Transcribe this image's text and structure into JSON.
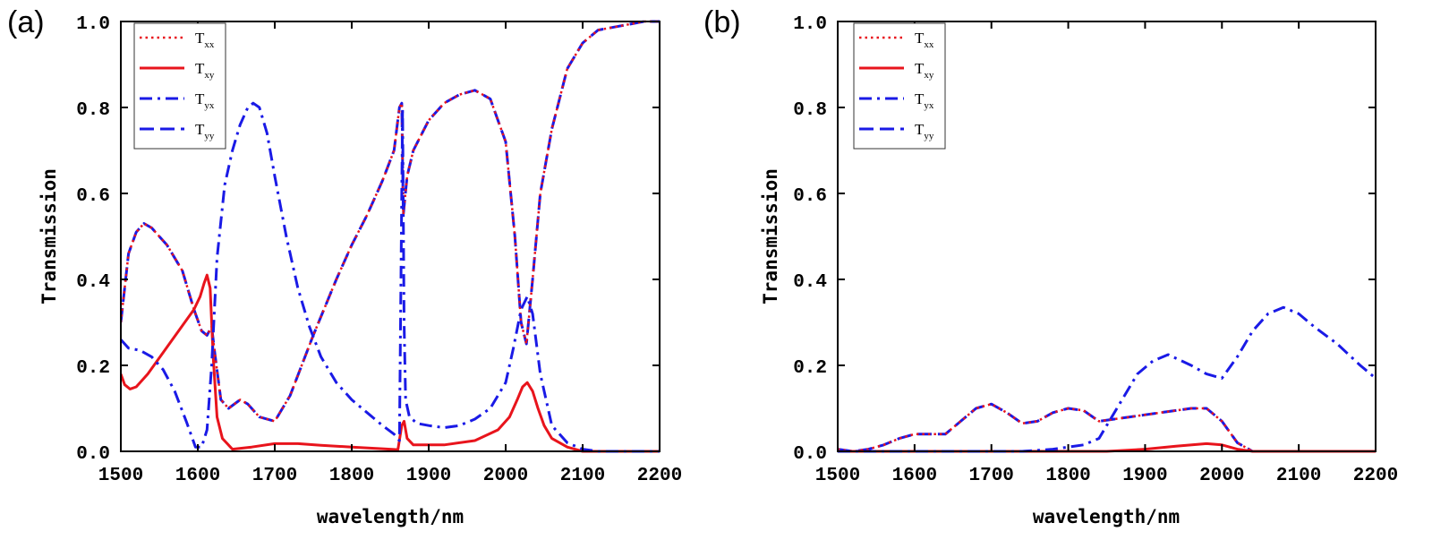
{
  "colors": {
    "red": "#e8141c",
    "blue": "#1a1ae6",
    "axis": "#000000"
  },
  "chart_data": [
    {
      "type": "line",
      "panel_label": "(a)",
      "xlabel": "wavelength/nm",
      "ylabel": "Transmission",
      "xlim": [
        1500,
        2200
      ],
      "ylim": [
        0.0,
        1.0
      ],
      "x_ticks": [
        "1500",
        "1600",
        "1700",
        "1800",
        "1900",
        "2000",
        "2100",
        "2200"
      ],
      "y_ticks": [
        "0.0",
        "0.2",
        "0.4",
        "0.6",
        "0.8",
        "1.0"
      ],
      "legend": [
        {
          "main": "T",
          "sub": "xx",
          "color": "red",
          "dash": "dot"
        },
        {
          "main": "T",
          "sub": "xy",
          "color": "red",
          "dash": "solid"
        },
        {
          "main": "T",
          "sub": "yx",
          "color": "blue",
          "dash": "dashdot"
        },
        {
          "main": "T",
          "sub": "yy",
          "color": "blue",
          "dash": "dash"
        }
      ],
      "series": [
        {
          "name": "Tyy",
          "color": "blue",
          "dash": "dash",
          "x": [
            1500,
            1510,
            1520,
            1530,
            1540,
            1560,
            1580,
            1595,
            1605,
            1612,
            1618,
            1622,
            1630,
            1640,
            1655,
            1665,
            1680,
            1700,
            1720,
            1750,
            1780,
            1800,
            1820,
            1840,
            1855,
            1862,
            1865,
            1867,
            1872,
            1880,
            1900,
            1920,
            1940,
            1960,
            1980,
            2000,
            2012,
            2020,
            2027,
            2035,
            2045,
            2060,
            2080,
            2100,
            2120,
            2150,
            2180,
            2200
          ],
          "y": [
            0.3,
            0.46,
            0.51,
            0.53,
            0.52,
            0.48,
            0.42,
            0.33,
            0.28,
            0.27,
            0.29,
            0.23,
            0.12,
            0.1,
            0.12,
            0.11,
            0.08,
            0.07,
            0.13,
            0.27,
            0.4,
            0.48,
            0.55,
            0.63,
            0.7,
            0.8,
            0.81,
            0.55,
            0.64,
            0.7,
            0.77,
            0.81,
            0.83,
            0.84,
            0.82,
            0.72,
            0.5,
            0.3,
            0.25,
            0.4,
            0.6,
            0.75,
            0.89,
            0.95,
            0.98,
            0.99,
            1.0,
            1.0
          ]
        },
        {
          "name": "Txx",
          "color": "red",
          "dash": "dot",
          "x": [
            1500,
            1510,
            1520,
            1530,
            1540,
            1560,
            1580,
            1595,
            1605,
            1612,
            1618,
            1622,
            1630,
            1640,
            1655,
            1665,
            1680,
            1700,
            1720,
            1750,
            1780,
            1800,
            1820,
            1840,
            1855,
            1862,
            1865,
            1867,
            1872,
            1880,
            1900,
            1920,
            1940,
            1960,
            1980,
            2000,
            2012,
            2020,
            2027,
            2035,
            2045,
            2060,
            2080,
            2100,
            2120,
            2150,
            2180,
            2200
          ],
          "y": [
            0.3,
            0.46,
            0.51,
            0.53,
            0.52,
            0.48,
            0.42,
            0.33,
            0.28,
            0.27,
            0.29,
            0.23,
            0.12,
            0.1,
            0.12,
            0.11,
            0.08,
            0.07,
            0.13,
            0.27,
            0.4,
            0.48,
            0.55,
            0.63,
            0.7,
            0.8,
            0.81,
            0.55,
            0.64,
            0.7,
            0.77,
            0.81,
            0.83,
            0.84,
            0.82,
            0.72,
            0.5,
            0.3,
            0.25,
            0.4,
            0.6,
            0.75,
            0.89,
            0.95,
            0.98,
            0.99,
            1.0,
            1.0
          ]
        },
        {
          "name": "Txy",
          "color": "red",
          "dash": "solid",
          "x": [
            1500,
            1505,
            1512,
            1520,
            1535,
            1555,
            1575,
            1595,
            1603,
            1608,
            1612,
            1616,
            1620,
            1625,
            1632,
            1645,
            1670,
            1700,
            1730,
            1760,
            1800,
            1840,
            1860,
            1865,
            1868,
            1872,
            1880,
            1920,
            1960,
            1990,
            2005,
            2015,
            2022,
            2028,
            2035,
            2042,
            2050,
            2060,
            2080,
            2100,
            2150,
            2200
          ],
          "y": [
            0.18,
            0.155,
            0.145,
            0.15,
            0.18,
            0.23,
            0.28,
            0.33,
            0.36,
            0.39,
            0.41,
            0.38,
            0.22,
            0.08,
            0.03,
            0.005,
            0.01,
            0.018,
            0.018,
            0.014,
            0.01,
            0.006,
            0.004,
            0.06,
            0.07,
            0.03,
            0.015,
            0.015,
            0.025,
            0.05,
            0.08,
            0.12,
            0.15,
            0.16,
            0.14,
            0.1,
            0.06,
            0.03,
            0.01,
            0.0,
            0.0,
            0.0
          ]
        },
        {
          "name": "Tyx",
          "color": "blue",
          "dash": "dashdot",
          "x": [
            1500,
            1510,
            1525,
            1540,
            1555,
            1570,
            1585,
            1597,
            1605,
            1612,
            1618,
            1625,
            1635,
            1645,
            1655,
            1665,
            1672,
            1680,
            1690,
            1700,
            1715,
            1730,
            1745,
            1760,
            1780,
            1800,
            1820,
            1840,
            1855,
            1862,
            1864,
            1866,
            1868,
            1870,
            1875,
            1885,
            1900,
            1920,
            1940,
            1960,
            1980,
            2000,
            2010,
            2020,
            2028,
            2035,
            2045,
            2060,
            2080,
            2100,
            2120,
            2150,
            2180,
            2200
          ],
          "y": [
            0.26,
            0.24,
            0.235,
            0.22,
            0.19,
            0.14,
            0.07,
            0.01,
            0.01,
            0.05,
            0.2,
            0.45,
            0.62,
            0.7,
            0.76,
            0.8,
            0.81,
            0.8,
            0.74,
            0.64,
            0.5,
            0.38,
            0.29,
            0.22,
            0.16,
            0.12,
            0.09,
            0.06,
            0.04,
            0.025,
            0.4,
            0.8,
            0.3,
            0.12,
            0.08,
            0.065,
            0.06,
            0.055,
            0.06,
            0.075,
            0.1,
            0.16,
            0.24,
            0.33,
            0.36,
            0.32,
            0.18,
            0.06,
            0.02,
            0.005,
            0.0,
            0.0,
            0.0,
            0.0
          ]
        }
      ]
    },
    {
      "type": "line",
      "panel_label": "(b)",
      "xlabel": "wavelength/nm",
      "ylabel": "Transmission",
      "xlim": [
        1500,
        2200
      ],
      "ylim": [
        0.0,
        1.0
      ],
      "x_ticks": [
        "1500",
        "1600",
        "1700",
        "1800",
        "1900",
        "2000",
        "2100",
        "2200"
      ],
      "y_ticks": [
        "0.0",
        "0.2",
        "0.4",
        "0.6",
        "0.8",
        "1.0"
      ],
      "legend": [
        {
          "main": "T",
          "sub": "xx",
          "color": "red",
          "dash": "dot"
        },
        {
          "main": "T",
          "sub": "xy",
          "color": "red",
          "dash": "solid"
        },
        {
          "main": "T",
          "sub": "yx",
          "color": "blue",
          "dash": "dashdot"
        },
        {
          "main": "T",
          "sub": "yy",
          "color": "blue",
          "dash": "dash"
        }
      ],
      "series": [
        {
          "name": "Tyy",
          "color": "blue",
          "dash": "dash",
          "x": [
            1500,
            1520,
            1540,
            1560,
            1580,
            1600,
            1620,
            1640,
            1660,
            1680,
            1700,
            1720,
            1740,
            1760,
            1780,
            1800,
            1820,
            1840,
            1860,
            1880,
            1900,
            1920,
            1940,
            1960,
            1980,
            2000,
            2020,
            2040,
            2060,
            2080,
            2100,
            2150,
            2200
          ],
          "y": [
            0.005,
            0.0,
            0.005,
            0.015,
            0.03,
            0.04,
            0.04,
            0.04,
            0.07,
            0.1,
            0.11,
            0.09,
            0.065,
            0.07,
            0.09,
            0.1,
            0.095,
            0.07,
            0.075,
            0.08,
            0.085,
            0.09,
            0.095,
            0.1,
            0.1,
            0.07,
            0.02,
            0.0,
            0.0,
            0.0,
            0.0,
            0.0,
            0.0
          ]
        },
        {
          "name": "Txx",
          "color": "red",
          "dash": "dot",
          "x": [
            1500,
            1520,
            1540,
            1560,
            1580,
            1600,
            1620,
            1640,
            1660,
            1680,
            1700,
            1720,
            1740,
            1760,
            1780,
            1800,
            1820,
            1840,
            1860,
            1880,
            1900,
            1920,
            1940,
            1960,
            1980,
            2000,
            2020,
            2040,
            2060,
            2080,
            2100,
            2150,
            2200
          ],
          "y": [
            0.005,
            0.0,
            0.005,
            0.015,
            0.03,
            0.04,
            0.04,
            0.04,
            0.07,
            0.1,
            0.11,
            0.09,
            0.065,
            0.07,
            0.09,
            0.1,
            0.095,
            0.07,
            0.075,
            0.08,
            0.085,
            0.09,
            0.095,
            0.1,
            0.1,
            0.07,
            0.02,
            0.0,
            0.0,
            0.0,
            0.0,
            0.0,
            0.0
          ]
        },
        {
          "name": "Txy",
          "color": "red",
          "dash": "solid",
          "x": [
            1500,
            1600,
            1700,
            1800,
            1850,
            1900,
            1940,
            1980,
            2000,
            2020,
            2040,
            2100,
            2200
          ],
          "y": [
            0.0,
            0.0,
            0.0,
            0.0,
            0.0,
            0.005,
            0.012,
            0.018,
            0.015,
            0.005,
            0.0,
            0.0,
            0.0
          ]
        },
        {
          "name": "Tyx",
          "color": "blue",
          "dash": "dashdot",
          "x": [
            1500,
            1520,
            1540,
            1560,
            1600,
            1640,
            1680,
            1700,
            1740,
            1780,
            1800,
            1820,
            1840,
            1850,
            1870,
            1890,
            1910,
            1930,
            1960,
            1980,
            2000,
            2020,
            2040,
            2060,
            2080,
            2100,
            2120,
            2150,
            2180,
            2200
          ],
          "y": [
            0.0,
            0.0,
            0.0,
            0.0,
            0.0,
            0.0,
            0.0,
            0.0,
            0.0,
            0.005,
            0.01,
            0.015,
            0.03,
            0.06,
            0.12,
            0.18,
            0.21,
            0.225,
            0.2,
            0.18,
            0.17,
            0.22,
            0.28,
            0.32,
            0.335,
            0.32,
            0.29,
            0.25,
            0.2,
            0.17
          ]
        }
      ]
    }
  ]
}
